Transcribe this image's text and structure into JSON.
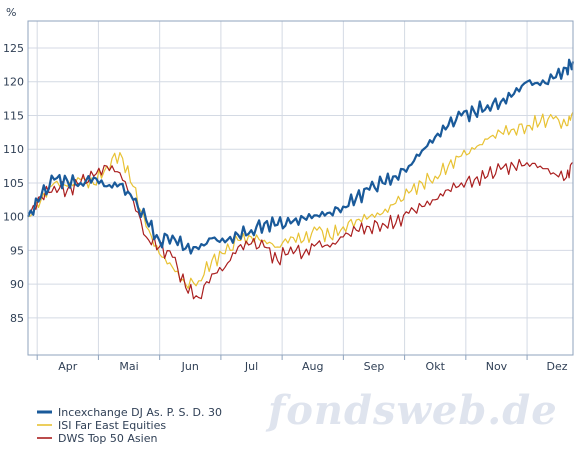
{
  "chart_data": {
    "type": "line",
    "unit_label": "%",
    "y_ticks": [
      85,
      90,
      95,
      100,
      105,
      110,
      115,
      120,
      125
    ],
    "ylim": [
      79.5,
      129
    ],
    "x_months": [
      "Apr",
      "Mai",
      "Jun",
      "Jul",
      "Aug",
      "Sep",
      "Okt",
      "Nov",
      "Dez"
    ],
    "xlim_weeks": [
      0,
      41.5
    ],
    "grid": true,
    "legend_position": "bottom-left",
    "watermark": "fondsweb.de",
    "series": [
      {
        "name": "Incexchange DJ As. P. S. D. 30",
        "color": "#1a5a9a",
        "x_weeks": [
          0,
          1,
          2,
          3,
          4,
          5,
          6,
          7,
          8,
          9,
          10,
          11,
          12,
          13,
          14,
          15,
          16,
          17,
          18,
          19,
          20,
          21,
          22,
          23,
          24,
          25,
          26,
          27,
          28,
          29,
          30,
          31,
          32,
          33,
          34,
          35,
          36,
          37,
          38,
          39,
          40,
          41,
          41.5
        ],
        "values": [
          100,
          103,
          105.5,
          105.3,
          105,
          105.8,
          104.5,
          104.8,
          102.5,
          99.5,
          96.5,
          97.2,
          95.3,
          95.2,
          96.8,
          96.2,
          97.3,
          98,
          99,
          98.8,
          99,
          99.8,
          100.2,
          100.6,
          101.5,
          102.8,
          104,
          105,
          106,
          107.5,
          109.8,
          111.8,
          113.5,
          115,
          115.5,
          116.5,
          117,
          118.2,
          120,
          119.5,
          120.5,
          122,
          123
        ]
      },
      {
        "name": "ISI Far East Equities",
        "color": "#e8c234",
        "x_weeks": [
          0,
          1,
          2,
          3,
          4,
          5,
          6,
          7,
          8,
          9,
          10,
          11,
          12,
          13,
          14,
          15,
          16,
          17,
          18,
          19,
          20,
          21,
          22,
          23,
          24,
          25,
          26,
          27,
          28,
          29,
          30,
          31,
          32,
          33,
          34,
          35,
          36,
          37,
          38,
          39,
          40,
          41,
          41.5
        ],
        "values": [
          100,
          102.5,
          105,
          104.5,
          105.5,
          104.8,
          107.5,
          109.5,
          104.5,
          98.5,
          94.5,
          92.5,
          90,
          90.5,
          93.5,
          94.5,
          96.5,
          97,
          96.5,
          95.5,
          97,
          96.5,
          98,
          97,
          98.5,
          99.5,
          100,
          100.5,
          102,
          103.5,
          105,
          106,
          107.5,
          109,
          110,
          111.5,
          112.5,
          113,
          113.5,
          114,
          114.5,
          113.5,
          115.5
        ]
      },
      {
        "name": "DWS Top 50 Asien",
        "color": "#aa1f1f",
        "x_weeks": [
          0,
          1,
          2,
          3,
          4,
          5,
          6,
          7,
          8,
          9,
          10,
          11,
          12,
          13,
          14,
          15,
          16,
          17,
          18,
          19,
          20,
          21,
          22,
          23,
          24,
          25,
          26,
          27,
          28,
          29,
          30,
          31,
          32,
          33,
          34,
          35,
          36,
          37,
          38,
          39,
          40,
          41,
          41.5
        ],
        "values": [
          100,
          103,
          104.5,
          104,
          105,
          106,
          107.5,
          106.5,
          102.5,
          97,
          95.5,
          94,
          89.5,
          88,
          91.5,
          92.5,
          95.5,
          96,
          95.5,
          93.5,
          95.5,
          94.5,
          96,
          95.5,
          97,
          98,
          98.5,
          99,
          99,
          100.5,
          101.5,
          102.5,
          104,
          105,
          105.5,
          106,
          107,
          107.5,
          108,
          107.5,
          106.5,
          105.8,
          108
        ]
      }
    ]
  }
}
